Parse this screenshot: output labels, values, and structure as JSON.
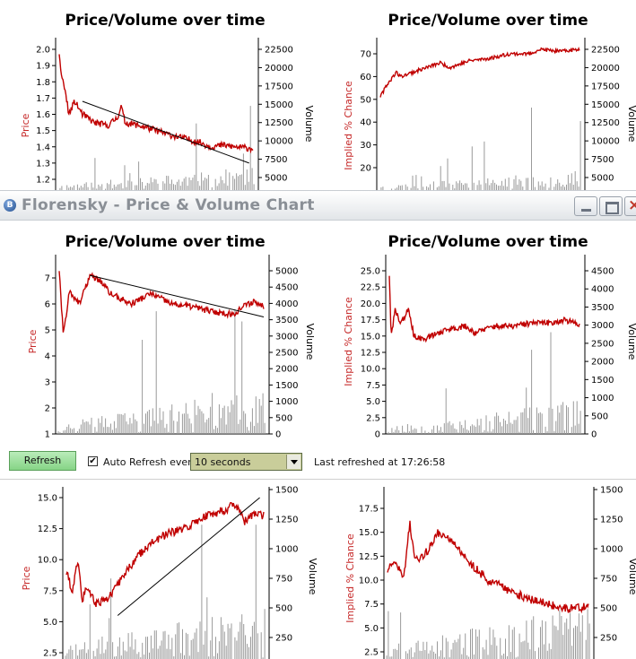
{
  "window": {
    "title": "Florensky - Price & Volume Chart",
    "app_icon_letter": "B"
  },
  "toolbar": {
    "refresh_label": "Refresh",
    "auto_refresh_checked": true,
    "auto_refresh_label": "Auto Refresh every",
    "interval_value": "10 seconds",
    "last_refreshed": "Last refreshed at 17:26:58"
  },
  "chart_data": [
    {
      "type": "line",
      "title": "Price/Volume over time",
      "ylabel": "Price",
      "y2label": "Volume",
      "yticks": [
        "2.0",
        "1.9",
        "1.8",
        "1.7",
        "1.6",
        "1.5",
        "1.4",
        "1.3",
        "1.2"
      ],
      "ylim": [
        1.15,
        2.05
      ],
      "y2ticks": [
        "22500",
        "20000",
        "17500",
        "15000",
        "12500",
        "10000",
        "7500",
        "5000"
      ],
      "y2lim": [
        3500,
        23500
      ],
      "anchors": [
        [
          0,
          1.97
        ],
        [
          0.01,
          1.85
        ],
        [
          0.03,
          1.75
        ],
        [
          0.05,
          1.6
        ],
        [
          0.08,
          1.68
        ],
        [
          0.12,
          1.6
        ],
        [
          0.18,
          1.55
        ],
        [
          0.25,
          1.53
        ],
        [
          0.3,
          1.58
        ],
        [
          0.32,
          1.65
        ],
        [
          0.34,
          1.55
        ],
        [
          0.45,
          1.52
        ],
        [
          0.55,
          1.48
        ],
        [
          0.65,
          1.45
        ],
        [
          0.72,
          1.43
        ],
        [
          0.78,
          1.4
        ],
        [
          0.85,
          1.41
        ],
        [
          0.9,
          1.4
        ],
        [
          1,
          1.39
        ]
      ],
      "trend": [
        [
          0.12,
          1.68
        ],
        [
          0.98,
          1.3
        ]
      ],
      "seed": 11,
      "noise": 0.02,
      "vol_level": 0.12
    },
    {
      "type": "line",
      "title": "Price/Volume over time",
      "ylabel": "Implied % Chance",
      "y2label": "Volume",
      "yticks": [
        "70",
        "60",
        "50",
        "40",
        "30",
        "20"
      ],
      "ylim": [
        13,
        77
      ],
      "y2ticks": [
        "22500",
        "20000",
        "17500",
        "15000",
        "12500",
        "10000",
        "7500",
        "5000"
      ],
      "y2lim": [
        3500,
        23500
      ],
      "anchors": [
        [
          0,
          51
        ],
        [
          0.03,
          56
        ],
        [
          0.08,
          62
        ],
        [
          0.1,
          60
        ],
        [
          0.2,
          63
        ],
        [
          0.3,
          66
        ],
        [
          0.35,
          64
        ],
        [
          0.45,
          67
        ],
        [
          0.55,
          68
        ],
        [
          0.65,
          70
        ],
        [
          0.75,
          70
        ],
        [
          0.8,
          72
        ],
        [
          0.9,
          71
        ],
        [
          1,
          72
        ]
      ],
      "trend": null,
      "seed": 23,
      "noise": 0.8,
      "vol_level": 0.1
    },
    {
      "type": "line",
      "title": "Price/Volume over time",
      "ylabel": "Price",
      "y2label": "Volume",
      "yticks": [
        "7",
        "6",
        "5",
        "4",
        "3",
        "2",
        "1"
      ],
      "ylim": [
        1,
        7.5
      ],
      "y2ticks": [
        "5000",
        "4500",
        "4000",
        "3500",
        "3000",
        "2500",
        "2000",
        "1500",
        "1000",
        "500",
        "0"
      ],
      "y2lim": [
        0,
        5200
      ],
      "anchors": [
        [
          0,
          7.3
        ],
        [
          0.02,
          4.8
        ],
        [
          0.05,
          6.5
        ],
        [
          0.1,
          6.0
        ],
        [
          0.15,
          7.1
        ],
        [
          0.2,
          6.9
        ],
        [
          0.25,
          6.4
        ],
        [
          0.35,
          6.0
        ],
        [
          0.45,
          6.4
        ],
        [
          0.55,
          6.0
        ],
        [
          0.65,
          5.9
        ],
        [
          0.75,
          5.7
        ],
        [
          0.85,
          5.6
        ],
        [
          0.9,
          5.9
        ],
        [
          0.95,
          6.1
        ],
        [
          1,
          5.9
        ]
      ],
      "trend": [
        [
          0.15,
          7.1
        ],
        [
          1,
          5.5
        ]
      ],
      "seed": 37,
      "noise": 0.12,
      "vol_level": 0.2
    },
    {
      "type": "line",
      "title": "Price/Volume over time",
      "ylabel": "Implied % Chance",
      "y2label": "Volume",
      "yticks": [
        "25.0",
        "22.5",
        "20.0",
        "17.5",
        "15.0",
        "12.5",
        "10.0",
        "7.5",
        "5.0",
        "2.5",
        "0"
      ],
      "ylim": [
        0,
        26.5
      ],
      "y2ticks": [
        "4500",
        "4000",
        "3500",
        "3000",
        "2500",
        "2000",
        "1500",
        "1000",
        "500",
        "0"
      ],
      "y2lim": [
        0,
        4700
      ],
      "anchors": [
        [
          0,
          24
        ],
        [
          0.01,
          15
        ],
        [
          0.03,
          19
        ],
        [
          0.06,
          17
        ],
        [
          0.1,
          19
        ],
        [
          0.13,
          15
        ],
        [
          0.18,
          14.5
        ],
        [
          0.3,
          16
        ],
        [
          0.4,
          16.5
        ],
        [
          0.45,
          15.5
        ],
        [
          0.55,
          16.5
        ],
        [
          0.65,
          16.5
        ],
        [
          0.75,
          17
        ],
        [
          0.85,
          17
        ],
        [
          0.92,
          17.5
        ],
        [
          0.97,
          17
        ],
        [
          1,
          16.8
        ]
      ],
      "trend": null,
      "seed": 53,
      "noise": 0.45,
      "vol_level": 0.15
    },
    {
      "type": "line",
      "title": "",
      "ylabel": "Price",
      "y2label": "Volume",
      "yticks": [
        "15.0",
        "12.5",
        "10.0",
        "7.5",
        "5.0",
        "2.5"
      ],
      "ylim": [
        1,
        16
      ],
      "y2ticks": [
        "1500",
        "1250",
        "1000",
        "750",
        "500",
        "250"
      ],
      "y2lim": [
        100,
        1500
      ],
      "anchors": [
        [
          0,
          9
        ],
        [
          0.03,
          7.5
        ],
        [
          0.06,
          10
        ],
        [
          0.08,
          6.5
        ],
        [
          0.1,
          8
        ],
        [
          0.15,
          6.5
        ],
        [
          0.22,
          7
        ],
        [
          0.3,
          9
        ],
        [
          0.4,
          11
        ],
        [
          0.5,
          12
        ],
        [
          0.6,
          12.5
        ],
        [
          0.7,
          13.5
        ],
        [
          0.8,
          14
        ],
        [
          0.86,
          14.5
        ],
        [
          0.9,
          13
        ],
        [
          0.95,
          13.7
        ],
        [
          1,
          13.5
        ]
      ],
      "trend": [
        [
          0.26,
          5.5
        ],
        [
          0.98,
          15
        ]
      ],
      "seed": 71,
      "noise": 0.35,
      "vol_level": 0.25
    },
    {
      "type": "line",
      "title": "",
      "ylabel": "Implied % Chance",
      "y2label": "Volume",
      "yticks": [
        "17.5",
        "15.0",
        "12.5",
        "10.0",
        "7.5",
        "5.0",
        "2.5"
      ],
      "ylim": [
        1,
        19
      ],
      "y2ticks": [
        "1500",
        "1250",
        "1000",
        "750",
        "500",
        "250"
      ],
      "y2lim": [
        100,
        1500
      ],
      "anchors": [
        [
          0,
          11
        ],
        [
          0.04,
          12
        ],
        [
          0.08,
          10
        ],
        [
          0.11,
          16
        ],
        [
          0.14,
          12
        ],
        [
          0.2,
          13
        ],
        [
          0.25,
          15
        ],
        [
          0.3,
          14.5
        ],
        [
          0.4,
          12
        ],
        [
          0.5,
          10
        ],
        [
          0.6,
          9
        ],
        [
          0.7,
          8
        ],
        [
          0.8,
          7.5
        ],
        [
          0.9,
          7
        ],
        [
          1,
          7.2
        ]
      ],
      "trend": null,
      "seed": 89,
      "noise": 0.45,
      "vol_level": 0.25
    }
  ]
}
